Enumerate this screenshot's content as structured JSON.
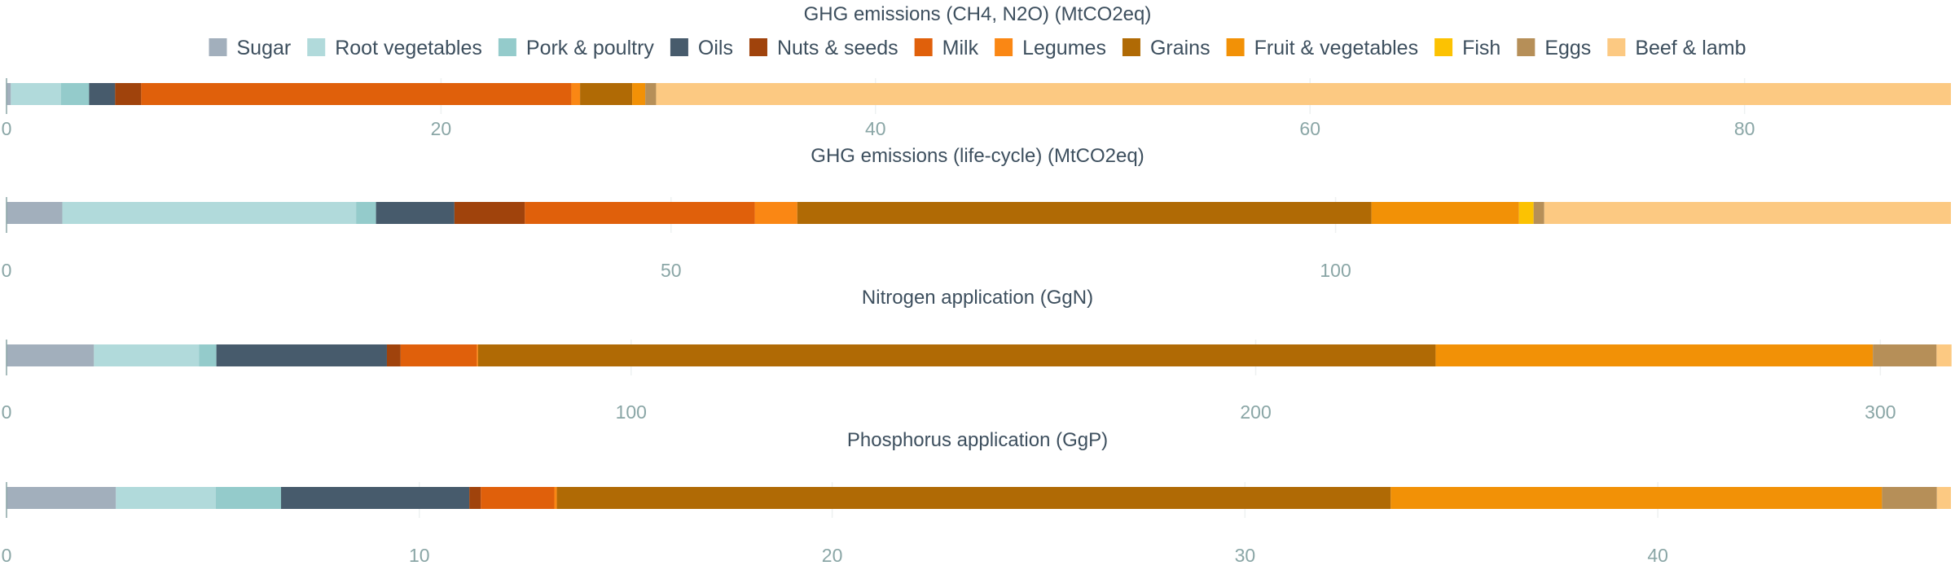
{
  "legend": [
    {
      "name": "Sugar",
      "color": "#a2afbc"
    },
    {
      "name": "Root vegetables",
      "color": "#b1dadb"
    },
    {
      "name": "Pork & poultry",
      "color": "#94cbcb"
    },
    {
      "name": "Oils",
      "color": "#475b6c"
    },
    {
      "name": "Nuts & seeds",
      "color": "#a0430c"
    },
    {
      "name": "Milk",
      "color": "#e0600b"
    },
    {
      "name": "Legumes",
      "color": "#fa8714"
    },
    {
      "name": "Grains",
      "color": "#b06a05"
    },
    {
      "name": "Fruit & vegetables",
      "color": "#f29106"
    },
    {
      "name": "Fish",
      "color": "#fcc202"
    },
    {
      "name": "Eggs",
      "color": "#b68f58"
    },
    {
      "name": "Beef & lamb",
      "color": "#fcc982"
    }
  ],
  "chart_data": [
    {
      "type": "bar",
      "orientation": "horizontal",
      "stacked": true,
      "title": "GHG emissions (CH4, N2O) (MtCO2eq)",
      "xlim": [
        0,
        89.5
      ],
      "xticks": [
        0,
        20,
        40,
        60,
        80
      ],
      "series": [
        {
          "name": "Sugar",
          "value": 0.2
        },
        {
          "name": "Root vegetables",
          "value": 2.3
        },
        {
          "name": "Pork & poultry",
          "value": 1.3
        },
        {
          "name": "Oils",
          "value": 1.2
        },
        {
          "name": "Nuts & seeds",
          "value": 1.2
        },
        {
          "name": "Milk",
          "value": 19.8
        },
        {
          "name": "Legumes",
          "value": 0.4
        },
        {
          "name": "Grains",
          "value": 2.4
        },
        {
          "name": "Fruit & vegetables",
          "value": 0.6
        },
        {
          "name": "Fish",
          "value": 0.0
        },
        {
          "name": "Eggs",
          "value": 0.5
        },
        {
          "name": "Beef & lamb",
          "value": 59.6
        }
      ]
    },
    {
      "type": "bar",
      "orientation": "horizontal",
      "stacked": true,
      "title": "GHG emissions (life-cycle) (MtCO2eq)",
      "xlim": [
        0,
        146.3
      ],
      "xticks": [
        0,
        50,
        100
      ],
      "series": [
        {
          "name": "Sugar",
          "value": 4.2
        },
        {
          "name": "Root vegetables",
          "value": 22.1
        },
        {
          "name": "Pork & poultry",
          "value": 1.5
        },
        {
          "name": "Oils",
          "value": 5.9
        },
        {
          "name": "Nuts & seeds",
          "value": 5.3
        },
        {
          "name": "Milk",
          "value": 17.3
        },
        {
          "name": "Legumes",
          "value": 3.2
        },
        {
          "name": "Grains",
          "value": 43.2
        },
        {
          "name": "Fruit & vegetables",
          "value": 11.1
        },
        {
          "name": "Fish",
          "value": 1.1
        },
        {
          "name": "Eggs",
          "value": 0.8
        },
        {
          "name": "Beef & lamb",
          "value": 30.6
        }
      ]
    },
    {
      "type": "bar",
      "orientation": "horizontal",
      "stacked": true,
      "title": "Nitrogen application (GgN)",
      "xlim": [
        0,
        311.3
      ],
      "xticks": [
        0,
        100,
        200,
        300
      ],
      "series": [
        {
          "name": "Sugar",
          "value": 14.0
        },
        {
          "name": "Root vegetables",
          "value": 16.8
        },
        {
          "name": "Pork & poultry",
          "value": 2.8
        },
        {
          "name": "Oils",
          "value": 27.3
        },
        {
          "name": "Nuts & seeds",
          "value": 2.2
        },
        {
          "name": "Milk",
          "value": 12.2
        },
        {
          "name": "Legumes",
          "value": 0.2
        },
        {
          "name": "Grains",
          "value": 153.3
        },
        {
          "name": "Fruit & vegetables",
          "value": 70.0
        },
        {
          "name": "Fish",
          "value": 0.0
        },
        {
          "name": "Eggs",
          "value": 10.2
        },
        {
          "name": "Beef & lamb",
          "value": 2.4
        }
      ]
    },
    {
      "type": "bar",
      "orientation": "horizontal",
      "stacked": true,
      "title": "Phosphorus application (GgP)",
      "xlim": [
        0,
        47.1
      ],
      "xticks": [
        0,
        10,
        20,
        30,
        40
      ],
      "series": [
        {
          "name": "Sugar",
          "value": 2.65
        },
        {
          "name": "Root vegetables",
          "value": 2.42
        },
        {
          "name": "Pork & poultry",
          "value": 1.58
        },
        {
          "name": "Oils",
          "value": 4.56
        },
        {
          "name": "Nuts & seeds",
          "value": 0.28
        },
        {
          "name": "Milk",
          "value": 1.78
        },
        {
          "name": "Legumes",
          "value": 0.06
        },
        {
          "name": "Grains",
          "value": 20.2
        },
        {
          "name": "Fruit & vegetables",
          "value": 11.9
        },
        {
          "name": "Fish",
          "value": 0.0
        },
        {
          "name": "Eggs",
          "value": 1.33
        },
        {
          "name": "Beef & lamb",
          "value": 0.34
        }
      ]
    }
  ]
}
